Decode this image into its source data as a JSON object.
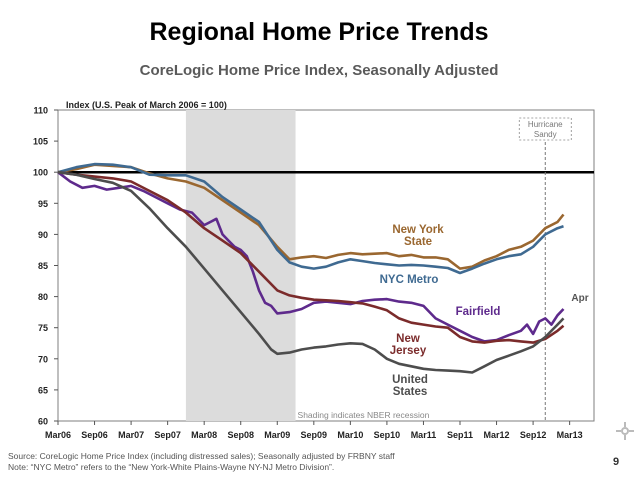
{
  "slide": {
    "title": "Regional Home Price Trends",
    "subtitle": "CoreLogic Home Price Index, Seasonally Adjusted",
    "source_line1": "Source: CoreLogic Home Price Index (including distressed sales); Seasonally adjusted by FRBNY staff",
    "source_line2": "Note: “NYC Metro” refers to the “New York-White Plains-Wayne NY-NJ Metro Division”.",
    "page_number": "9"
  },
  "chart_data": {
    "type": "line",
    "title": "Regional Home Price Trends",
    "ylabel": "Index (U.S. Peak of March 2006 = 100)",
    "xlabel": "",
    "ylim": [
      60,
      110
    ],
    "yticks": [
      60,
      65,
      70,
      75,
      80,
      85,
      90,
      95,
      100,
      105,
      110
    ],
    "xlim": [
      0,
      88
    ],
    "x_tick_labels": [
      "Mar06",
      "Sep06",
      "Mar07",
      "Sep07",
      "Mar08",
      "Sep08",
      "Mar09",
      "Sep09",
      "Mar10",
      "Sep10",
      "Mar11",
      "Sep11",
      "Mar12",
      "Sep12",
      "Mar13"
    ],
    "x_tick_positions": [
      0,
      6,
      12,
      18,
      24,
      30,
      36,
      42,
      48,
      54,
      60,
      66,
      72,
      78,
      84
    ],
    "recession": {
      "x_start": 21,
      "x_end": 39,
      "label": "Shading indicates NBER recession",
      "color": "#dcdcdc"
    },
    "reference_line": {
      "y": 100,
      "color": "#000000"
    },
    "hurricane": {
      "x": 80,
      "label_line1": "Hurricane",
      "label_line2": "Sandy"
    },
    "end_label": "Apr",
    "series": [
      {
        "name": "New York State",
        "label_line1": "New York",
        "label_line2": "State",
        "color": "#9a6730",
        "points": [
          [
            0,
            100
          ],
          [
            3,
            100.5
          ],
          [
            6,
            101.2
          ],
          [
            9,
            101
          ],
          [
            12,
            100.8
          ],
          [
            15,
            99.8
          ],
          [
            18,
            99
          ],
          [
            21,
            98.5
          ],
          [
            24,
            97.5
          ],
          [
            27,
            95.5
          ],
          [
            30,
            93.5
          ],
          [
            33,
            91.5
          ],
          [
            36,
            88
          ],
          [
            38,
            86
          ],
          [
            40,
            86.3
          ],
          [
            42,
            86.5
          ],
          [
            44,
            86.2
          ],
          [
            46,
            86.7
          ],
          [
            48,
            87
          ],
          [
            50,
            86.8
          ],
          [
            52,
            86.9
          ],
          [
            54,
            87
          ],
          [
            56,
            86.5
          ],
          [
            58,
            86.7
          ],
          [
            60,
            86.3
          ],
          [
            62,
            86.3
          ],
          [
            64,
            86
          ],
          [
            66,
            84.5
          ],
          [
            68,
            84.8
          ],
          [
            70,
            85.8
          ],
          [
            72,
            86.5
          ],
          [
            74,
            87.5
          ],
          [
            76,
            88
          ],
          [
            78,
            89
          ],
          [
            80,
            91
          ],
          [
            82,
            92
          ],
          [
            83,
            93.2
          ]
        ]
      },
      {
        "name": "NYC Metro",
        "label_line1": "NYC Metro",
        "label_line2": "",
        "color": "#3f6a91",
        "points": [
          [
            0,
            100
          ],
          [
            3,
            100.8
          ],
          [
            6,
            101.3
          ],
          [
            9,
            101.2
          ],
          [
            12,
            100.8
          ],
          [
            15,
            99.6
          ],
          [
            18,
            99.5
          ],
          [
            21,
            99.5
          ],
          [
            24,
            98.5
          ],
          [
            27,
            96
          ],
          [
            30,
            94
          ],
          [
            33,
            92
          ],
          [
            36,
            87.5
          ],
          [
            38,
            85.5
          ],
          [
            40,
            84.8
          ],
          [
            42,
            84.5
          ],
          [
            44,
            84.8
          ],
          [
            46,
            85.5
          ],
          [
            48,
            86
          ],
          [
            50,
            85.7
          ],
          [
            52,
            85.4
          ],
          [
            54,
            85.2
          ],
          [
            56,
            85
          ],
          [
            58,
            85.1
          ],
          [
            60,
            85
          ],
          [
            62,
            84.8
          ],
          [
            64,
            84.6
          ],
          [
            66,
            83.8
          ],
          [
            68,
            84.5
          ],
          [
            70,
            85.3
          ],
          [
            72,
            86
          ],
          [
            74,
            86.5
          ],
          [
            76,
            86.8
          ],
          [
            78,
            88
          ],
          [
            80,
            90
          ],
          [
            82,
            91
          ],
          [
            83,
            91.3
          ]
        ]
      },
      {
        "name": "Fairfield",
        "label_line1": "Fairfield",
        "label_line2": "",
        "color": "#5e2a8c",
        "points": [
          [
            0,
            100
          ],
          [
            2,
            98.5
          ],
          [
            4,
            97.5
          ],
          [
            6,
            97.8
          ],
          [
            8,
            97.2
          ],
          [
            10,
            97.5
          ],
          [
            12,
            97.8
          ],
          [
            14,
            97
          ],
          [
            16,
            96
          ],
          [
            18,
            95
          ],
          [
            20,
            94
          ],
          [
            22,
            93.5
          ],
          [
            24,
            91.5
          ],
          [
            25,
            92
          ],
          [
            26,
            92.5
          ],
          [
            27,
            90
          ],
          [
            28,
            89
          ],
          [
            29,
            88
          ],
          [
            30,
            87.5
          ],
          [
            31,
            86.5
          ],
          [
            32,
            84
          ],
          [
            33,
            81
          ],
          [
            34,
            79
          ],
          [
            35,
            78.5
          ],
          [
            36,
            77.3
          ],
          [
            38,
            77.5
          ],
          [
            40,
            78
          ],
          [
            42,
            79
          ],
          [
            44,
            79.2
          ],
          [
            46,
            79
          ],
          [
            48,
            78.8
          ],
          [
            50,
            79.3
          ],
          [
            52,
            79.5
          ],
          [
            54,
            79.6
          ],
          [
            56,
            79.2
          ],
          [
            58,
            79
          ],
          [
            60,
            78.5
          ],
          [
            62,
            76.5
          ],
          [
            64,
            75.5
          ],
          [
            66,
            74.5
          ],
          [
            68,
            73.5
          ],
          [
            70,
            72.8
          ],
          [
            72,
            73
          ],
          [
            74,
            73.8
          ],
          [
            76,
            74.5
          ],
          [
            77,
            75.5
          ],
          [
            78,
            74
          ],
          [
            79,
            76
          ],
          [
            80,
            76.5
          ],
          [
            81,
            75.5
          ],
          [
            82,
            77
          ],
          [
            83,
            78
          ]
        ]
      },
      {
        "name": "New Jersey",
        "label_line1": "New",
        "label_line2": "Jersey",
        "color": "#7b2b2b",
        "points": [
          [
            0,
            100
          ],
          [
            3,
            99.6
          ],
          [
            6,
            99.3
          ],
          [
            9,
            99
          ],
          [
            12,
            98.5
          ],
          [
            15,
            97
          ],
          [
            18,
            95.5
          ],
          [
            21,
            93.5
          ],
          [
            24,
            91
          ],
          [
            27,
            89
          ],
          [
            30,
            87
          ],
          [
            33,
            84
          ],
          [
            36,
            81
          ],
          [
            38,
            80.2
          ],
          [
            40,
            79.8
          ],
          [
            42,
            79.5
          ],
          [
            44,
            79.4
          ],
          [
            46,
            79.3
          ],
          [
            48,
            79.1
          ],
          [
            50,
            78.9
          ],
          [
            52,
            78.4
          ],
          [
            54,
            77.8
          ],
          [
            56,
            76.5
          ],
          [
            58,
            75.8
          ],
          [
            60,
            75.5
          ],
          [
            62,
            75.2
          ],
          [
            64,
            75
          ],
          [
            66,
            73.5
          ],
          [
            68,
            72.8
          ],
          [
            70,
            72.6
          ],
          [
            72,
            72.9
          ],
          [
            74,
            73
          ],
          [
            76,
            72.8
          ],
          [
            78,
            72.6
          ],
          [
            80,
            73.2
          ],
          [
            82,
            74.5
          ],
          [
            83,
            75.3
          ]
        ]
      },
      {
        "name": "United States",
        "label_line1": "United",
        "label_line2": "States",
        "color": "#4d4d4d",
        "points": [
          [
            0,
            100
          ],
          [
            3,
            99.6
          ],
          [
            6,
            98.9
          ],
          [
            9,
            98.3
          ],
          [
            12,
            97
          ],
          [
            15,
            94.2
          ],
          [
            18,
            91
          ],
          [
            21,
            88
          ],
          [
            24,
            84.5
          ],
          [
            27,
            81
          ],
          [
            30,
            77.5
          ],
          [
            33,
            74
          ],
          [
            35,
            71.5
          ],
          [
            36,
            70.8
          ],
          [
            38,
            71
          ],
          [
            40,
            71.5
          ],
          [
            42,
            71.8
          ],
          [
            44,
            72
          ],
          [
            46,
            72.3
          ],
          [
            48,
            72.5
          ],
          [
            50,
            72.4
          ],
          [
            52,
            71.5
          ],
          [
            54,
            70
          ],
          [
            56,
            69.2
          ],
          [
            58,
            68.8
          ],
          [
            60,
            68.4
          ],
          [
            62,
            68.2
          ],
          [
            64,
            68.1
          ],
          [
            66,
            68
          ],
          [
            68,
            67.8
          ],
          [
            70,
            68.8
          ],
          [
            72,
            69.8
          ],
          [
            74,
            70.5
          ],
          [
            76,
            71.2
          ],
          [
            78,
            72
          ],
          [
            80,
            73.5
          ],
          [
            82,
            75.5
          ],
          [
            83,
            76.5
          ]
        ]
      }
    ]
  }
}
